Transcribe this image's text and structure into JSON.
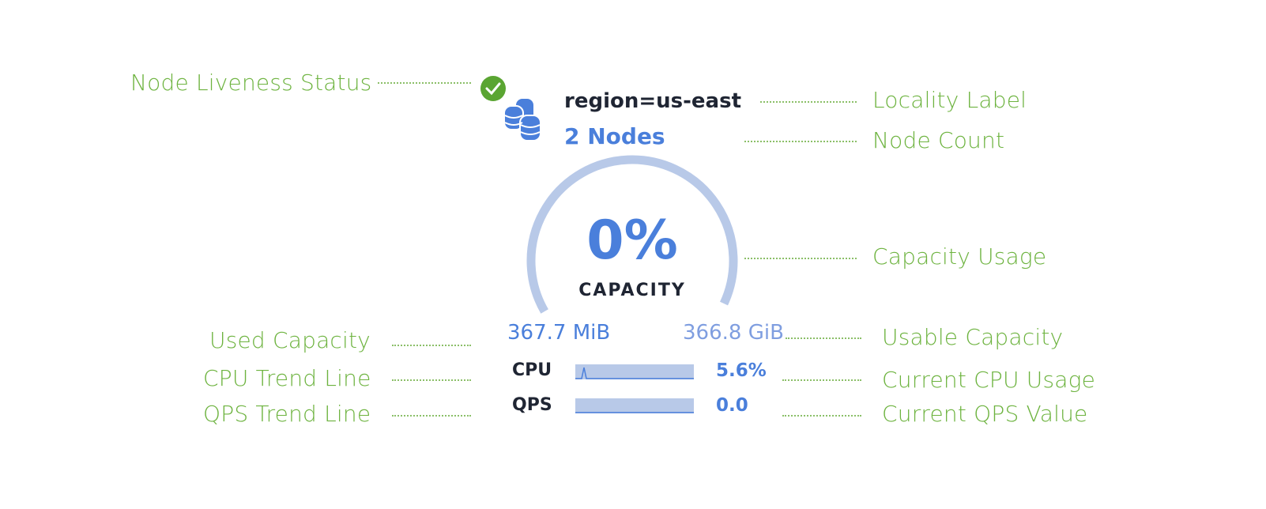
{
  "annotations": {
    "liveness": "Node Liveness Status",
    "locality": "Locality Label",
    "node_count": "Node Count",
    "capacity_usage": "Capacity Usage",
    "used_capacity": "Used Capacity",
    "usable_capacity": "Usable Capacity",
    "cpu_trend": "CPU Trend Line",
    "current_cpu": "Current CPU Usage",
    "qps_trend": "QPS Trend Line",
    "current_qps": "Current QPS Value"
  },
  "widget": {
    "status": "live",
    "status_icon": "check-circle-icon",
    "locality_icon": "database-stack-icon",
    "locality": "region=us-east",
    "node_count": "2 Nodes",
    "capacity_percent": "0%",
    "capacity_value": 0,
    "capacity_label": "CAPACITY",
    "used": "367.7 MiB",
    "usable": "366.8 GiB",
    "cpu_label": "CPU",
    "cpu_value": "5.6%",
    "qps_label": "QPS",
    "qps_value": "0.0"
  },
  "colors": {
    "annotation": "#6db33f",
    "accent": "#4a7fdb",
    "track": "#b8c9e8",
    "status_ok": "#5aa532"
  }
}
